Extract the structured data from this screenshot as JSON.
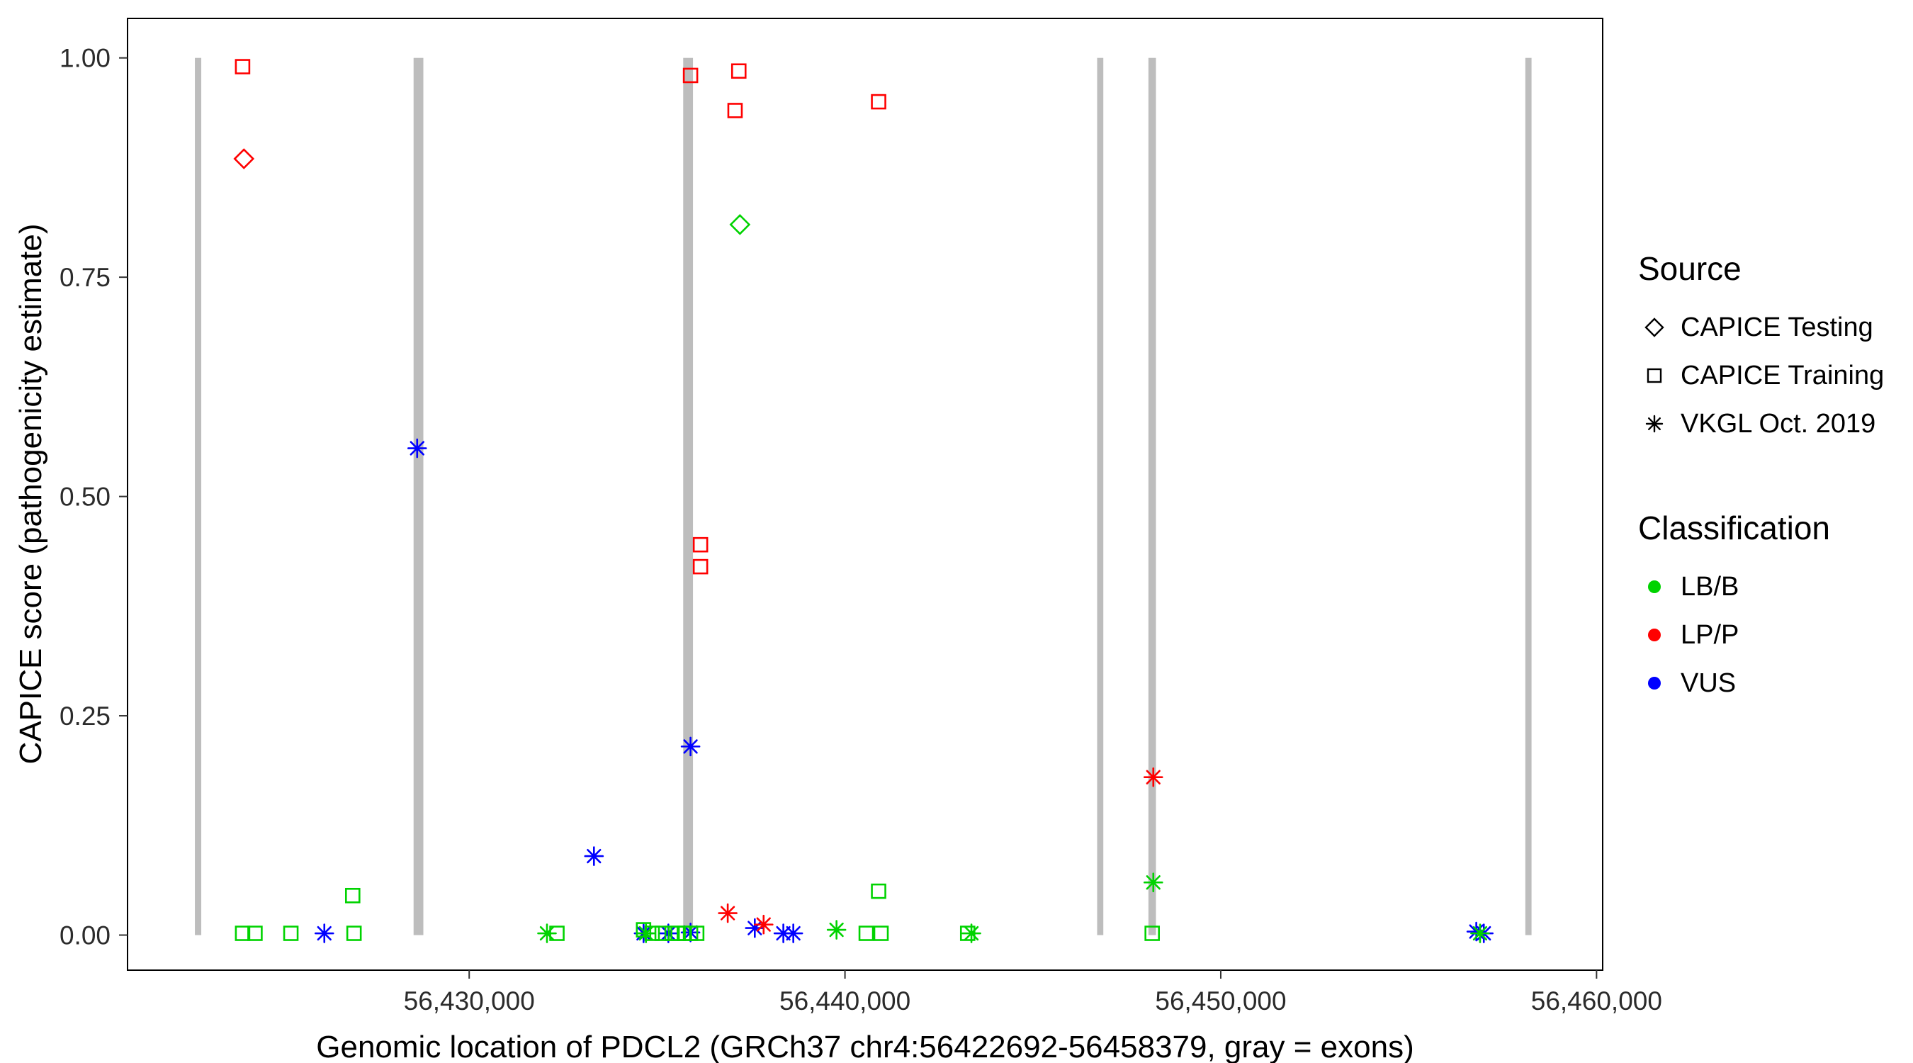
{
  "legend": {
    "source": {
      "title": "Source",
      "items": [
        {
          "label": "CAPICE Testing",
          "shape": "diamond"
        },
        {
          "label": "CAPICE Training",
          "shape": "square"
        },
        {
          "label": "VKGL Oct. 2019",
          "shape": "asterisk"
        }
      ]
    },
    "classification": {
      "title": "Classification",
      "items": [
        {
          "label": "LB/B",
          "color": "#00D300"
        },
        {
          "label": "LP/P",
          "color": "#FF0000"
        },
        {
          "label": "VUS",
          "color": "#0000FF"
        }
      ]
    }
  },
  "chart_data": {
    "type": "scatter",
    "title": "",
    "xlabel": "Genomic location of PDCL2 (GRCh37 chr4:56422692-56458379, gray = exons)",
    "ylabel": "CAPICE score (pathogenicity estimate)",
    "x_range": [
      56420908,
      56460163
    ],
    "y_range": [
      -0.04,
      1.045
    ],
    "x_ticks": [
      {
        "value": 56430000,
        "label": "56,430,000"
      },
      {
        "value": 56440000,
        "label": "56,440,000"
      },
      {
        "value": 56450000,
        "label": "56,450,000"
      },
      {
        "value": 56460000,
        "label": "56,460,000"
      }
    ],
    "y_ticks": [
      {
        "value": 0.0,
        "label": "0.00"
      },
      {
        "value": 0.25,
        "label": "0.25"
      },
      {
        "value": 0.5,
        "label": "0.50"
      },
      {
        "value": 0.75,
        "label": "0.75"
      },
      {
        "value": 1.0,
        "label": "1.00"
      }
    ],
    "exon_color": "#BDBDBD",
    "exons": [
      {
        "start": 56422700,
        "end": 56422870
      },
      {
        "start": 56428520,
        "end": 56428780
      },
      {
        "start": 56435695,
        "end": 56435955
      },
      {
        "start": 56446710,
        "end": 56446875
      },
      {
        "start": 56448075,
        "end": 56448275
      },
      {
        "start": 56458105,
        "end": 56458270
      }
    ],
    "colors": {
      "LB/B": "#00D300",
      "LP/P": "#FF0000",
      "VUS": "#0000FF"
    },
    "shapes": {
      "CAPICE Testing": "diamond",
      "CAPICE Training": "square",
      "VKGL Oct. 2019": "asterisk"
    },
    "points": [
      {
        "x": 56423970,
        "y": 0.99,
        "source": "CAPICE Training",
        "classification": "LP/P"
      },
      {
        "x": 56435890,
        "y": 0.98,
        "source": "CAPICE Training",
        "classification": "LP/P"
      },
      {
        "x": 56437175,
        "y": 0.985,
        "source": "CAPICE Training",
        "classification": "LP/P"
      },
      {
        "x": 56437075,
        "y": 0.94,
        "source": "CAPICE Training",
        "classification": "LP/P"
      },
      {
        "x": 56440895,
        "y": 0.95,
        "source": "CAPICE Training",
        "classification": "LP/P"
      },
      {
        "x": 56436155,
        "y": 0.445,
        "source": "CAPICE Training",
        "classification": "LP/P"
      },
      {
        "x": 56436155,
        "y": 0.42,
        "source": "CAPICE Training",
        "classification": "LP/P"
      },
      {
        "x": 56424005,
        "y": 0.885,
        "source": "CAPICE Testing",
        "classification": "LP/P"
      },
      {
        "x": 56437205,
        "y": 0.81,
        "source": "CAPICE Testing",
        "classification": "LB/B"
      },
      {
        "x": 56428615,
        "y": 0.555,
        "source": "VKGL Oct. 2019",
        "classification": "VUS"
      },
      {
        "x": 56435890,
        "y": 0.215,
        "source": "VKGL Oct. 2019",
        "classification": "VUS"
      },
      {
        "x": 56433320,
        "y": 0.09,
        "source": "VKGL Oct. 2019",
        "classification": "VUS"
      },
      {
        "x": 56426145,
        "y": 0.002,
        "source": "VKGL Oct. 2019",
        "classification": "VUS"
      },
      {
        "x": 56434640,
        "y": 0.002,
        "source": "VKGL Oct. 2019",
        "classification": "VUS"
      },
      {
        "x": 56435300,
        "y": 0.002,
        "source": "VKGL Oct. 2019",
        "classification": "VUS"
      },
      {
        "x": 56435890,
        "y": 0.003,
        "source": "VKGL Oct. 2019",
        "classification": "VUS"
      },
      {
        "x": 56437600,
        "y": 0.008,
        "source": "VKGL Oct. 2019",
        "classification": "VUS"
      },
      {
        "x": 56438360,
        "y": 0.002,
        "source": "VKGL Oct. 2019",
        "classification": "VUS"
      },
      {
        "x": 56438625,
        "y": 0.002,
        "source": "VKGL Oct. 2019",
        "classification": "VUS"
      },
      {
        "x": 56456800,
        "y": 0.004,
        "source": "VKGL Oct. 2019",
        "classification": "VUS"
      },
      {
        "x": 56457000,
        "y": 0.002,
        "source": "VKGL Oct. 2019",
        "classification": "VUS"
      },
      {
        "x": 56436880,
        "y": 0.025,
        "source": "VKGL Oct. 2019",
        "classification": "LP/P"
      },
      {
        "x": 56437835,
        "y": 0.012,
        "source": "VKGL Oct. 2019",
        "classification": "LP/P"
      },
      {
        "x": 56448205,
        "y": 0.18,
        "source": "VKGL Oct. 2019",
        "classification": "LP/P"
      },
      {
        "x": 56432070,
        "y": 0.002,
        "source": "VKGL Oct. 2019",
        "classification": "LB/B"
      },
      {
        "x": 56434705,
        "y": 0.002,
        "source": "VKGL Oct. 2019",
        "classification": "LB/B"
      },
      {
        "x": 56439775,
        "y": 0.006,
        "source": "VKGL Oct. 2019",
        "classification": "LB/B"
      },
      {
        "x": 56443365,
        "y": 0.002,
        "source": "VKGL Oct. 2019",
        "classification": "LB/B"
      },
      {
        "x": 56448205,
        "y": 0.06,
        "source": "VKGL Oct. 2019",
        "classification": "LB/B"
      },
      {
        "x": 56456900,
        "y": 0.002,
        "source": "VKGL Oct. 2019",
        "classification": "LB/B"
      },
      {
        "x": 56423970,
        "y": 0.002,
        "source": "CAPICE Training",
        "classification": "LB/B"
      },
      {
        "x": 56424300,
        "y": 0.002,
        "source": "CAPICE Training",
        "classification": "LB/B"
      },
      {
        "x": 56425255,
        "y": 0.002,
        "source": "CAPICE Training",
        "classification": "LB/B"
      },
      {
        "x": 56426935,
        "y": 0.002,
        "source": "CAPICE Training",
        "classification": "LB/B"
      },
      {
        "x": 56426900,
        "y": 0.045,
        "source": "CAPICE Training",
        "classification": "LB/B"
      },
      {
        "x": 56432335,
        "y": 0.002,
        "source": "CAPICE Training",
        "classification": "LB/B"
      },
      {
        "x": 56434640,
        "y": 0.006,
        "source": "CAPICE Training",
        "classification": "LB/B"
      },
      {
        "x": 56434870,
        "y": 0.002,
        "source": "CAPICE Training",
        "classification": "LB/B"
      },
      {
        "x": 56435135,
        "y": 0.002,
        "source": "CAPICE Training",
        "classification": "LB/B"
      },
      {
        "x": 56435400,
        "y": 0.002,
        "source": "CAPICE Training",
        "classification": "LB/B"
      },
      {
        "x": 56435560,
        "y": 0.002,
        "source": "CAPICE Training",
        "classification": "LB/B"
      },
      {
        "x": 56435725,
        "y": 0.002,
        "source": "CAPICE Training",
        "classification": "LB/B"
      },
      {
        "x": 56435890,
        "y": 0.002,
        "source": "CAPICE Training",
        "classification": "LB/B"
      },
      {
        "x": 56436055,
        "y": 0.002,
        "source": "CAPICE Training",
        "classification": "LB/B"
      },
      {
        "x": 56440565,
        "y": 0.002,
        "source": "CAPICE Training",
        "classification": "LB/B"
      },
      {
        "x": 56440895,
        "y": 0.05,
        "source": "CAPICE Training",
        "classification": "LB/B"
      },
      {
        "x": 56440960,
        "y": 0.002,
        "source": "CAPICE Training",
        "classification": "LB/B"
      },
      {
        "x": 56443265,
        "y": 0.002,
        "source": "CAPICE Training",
        "classification": "LB/B"
      },
      {
        "x": 56448175,
        "y": 0.002,
        "source": "CAPICE Training",
        "classification": "LB/B"
      }
    ]
  }
}
